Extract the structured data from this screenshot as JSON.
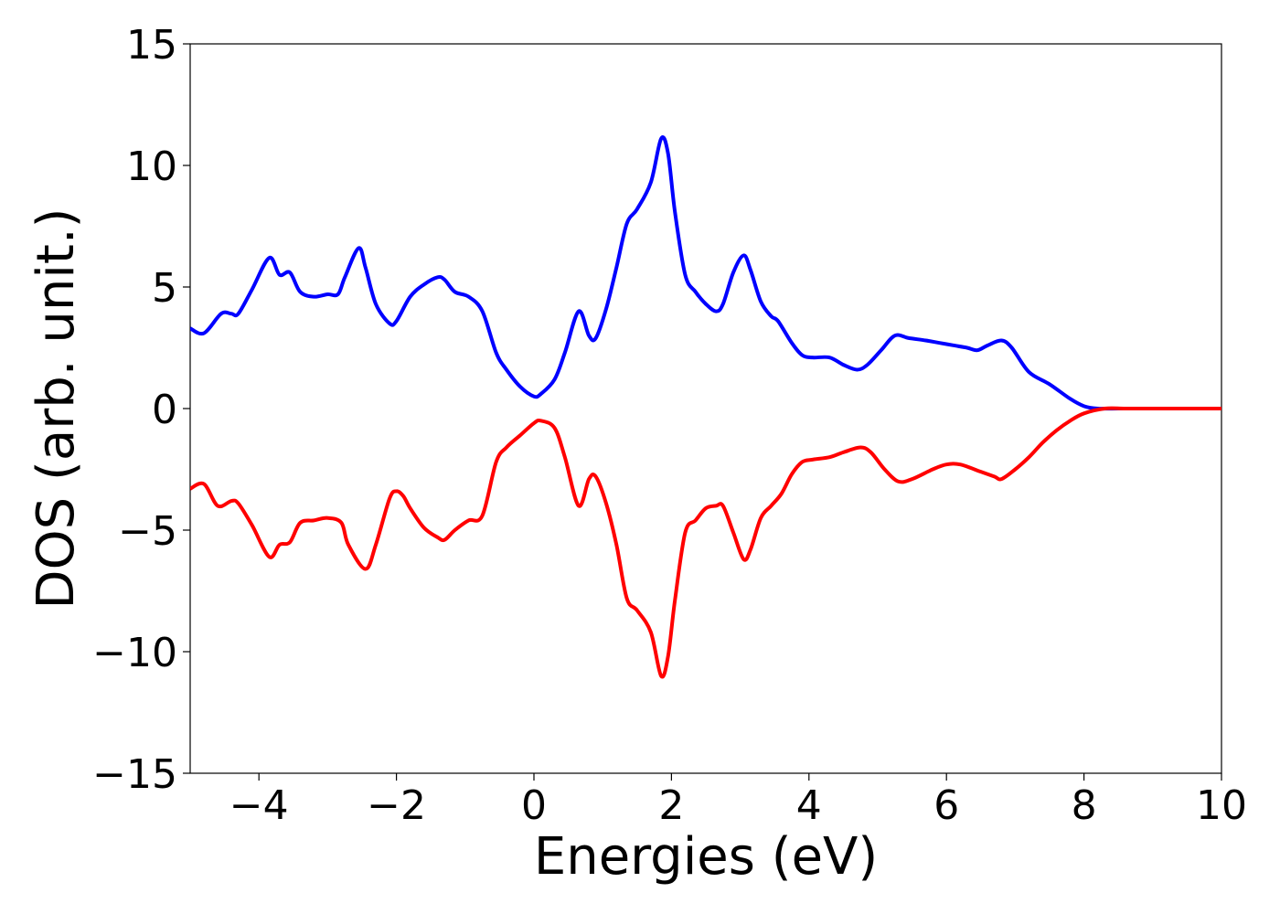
{
  "chart_data": {
    "type": "line",
    "title": "",
    "xlabel": "Energies (eV)",
    "ylabel": "DOS (arb. unit.)",
    "xlim": [
      -5,
      10
    ],
    "ylim": [
      -15,
      15
    ],
    "xticks": [
      -4,
      -2,
      0,
      2,
      4,
      6,
      8,
      10
    ],
    "yticks": [
      -15,
      -10,
      -5,
      0,
      5,
      10,
      15
    ],
    "xtick_labels": [
      "−4",
      "−2",
      "0",
      "2",
      "4",
      "6",
      "8",
      "10"
    ],
    "ytick_labels": [
      "−15",
      "−10",
      "−5",
      "0",
      "5",
      "10",
      "15"
    ],
    "grid": false,
    "legend": "none",
    "series": [
      {
        "color": "#0000ff",
        "x": [
          -5.0,
          -4.8,
          -4.55,
          -4.4,
          -4.3,
          -4.1,
          -3.85,
          -3.7,
          -3.55,
          -3.4,
          -3.2,
          -3.0,
          -2.85,
          -2.75,
          -2.55,
          -2.45,
          -2.3,
          -2.1,
          -2.0,
          -1.8,
          -1.6,
          -1.4,
          -1.3,
          -1.15,
          -0.95,
          -0.75,
          -0.55,
          -0.4,
          -0.2,
          0.0,
          0.1,
          0.3,
          0.45,
          0.65,
          0.8,
          0.9,
          1.05,
          1.2,
          1.35,
          1.5,
          1.7,
          1.85,
          1.95,
          2.05,
          2.2,
          2.35,
          2.5,
          2.65,
          2.75,
          2.9,
          3.05,
          3.15,
          3.3,
          3.45,
          3.55,
          3.75,
          3.9,
          4.05,
          4.3,
          4.5,
          4.7,
          4.85,
          5.05,
          5.25,
          5.45,
          5.7,
          5.9,
          6.1,
          6.3,
          6.45,
          6.6,
          6.8,
          6.95,
          7.2,
          7.5,
          7.8,
          8.0,
          8.2,
          8.5,
          9.0,
          9.5,
          10.0
        ],
        "y": [
          3.3,
          3.1,
          3.9,
          3.9,
          3.9,
          4.9,
          6.2,
          5.5,
          5.6,
          4.8,
          4.6,
          4.7,
          4.7,
          5.4,
          6.6,
          5.8,
          4.3,
          3.5,
          3.6,
          4.6,
          5.1,
          5.4,
          5.3,
          4.8,
          4.6,
          4.0,
          2.3,
          1.6,
          0.9,
          0.5,
          0.6,
          1.2,
          2.3,
          4.0,
          3.0,
          2.9,
          4.1,
          5.8,
          7.6,
          8.2,
          9.3,
          11.1,
          10.5,
          8.1,
          5.5,
          4.8,
          4.3,
          4.0,
          4.3,
          5.6,
          6.3,
          5.7,
          4.4,
          3.8,
          3.6,
          2.7,
          2.2,
          2.1,
          2.1,
          1.8,
          1.6,
          1.8,
          2.4,
          3.0,
          2.9,
          2.8,
          2.7,
          2.6,
          2.5,
          2.4,
          2.6,
          2.8,
          2.5,
          1.5,
          1.0,
          0.4,
          0.1,
          0.0,
          0.0,
          0.0,
          0.0,
          0.0
        ]
      },
      {
        "color": "#ff0000",
        "x": [
          -5.0,
          -4.8,
          -4.6,
          -4.4,
          -4.3,
          -4.1,
          -3.85,
          -3.7,
          -3.55,
          -3.4,
          -3.2,
          -3.0,
          -2.8,
          -2.7,
          -2.45,
          -2.3,
          -2.1,
          -2.0,
          -1.9,
          -1.8,
          -1.6,
          -1.4,
          -1.3,
          -1.15,
          -0.95,
          -0.75,
          -0.55,
          -0.4,
          -0.2,
          0.0,
          0.1,
          0.3,
          0.45,
          0.65,
          0.8,
          0.9,
          1.05,
          1.2,
          1.35,
          1.5,
          1.7,
          1.85,
          1.95,
          2.05,
          2.2,
          2.35,
          2.5,
          2.65,
          2.75,
          2.9,
          3.05,
          3.15,
          3.3,
          3.45,
          3.6,
          3.75,
          3.9,
          4.05,
          4.3,
          4.5,
          4.75,
          4.9,
          5.1,
          5.3,
          5.5,
          5.8,
          6.0,
          6.2,
          6.5,
          6.7,
          6.8,
          7.0,
          7.2,
          7.4,
          7.6,
          7.8,
          8.0,
          8.3,
          8.6,
          9.0,
          9.5,
          10.0
        ],
        "y": [
          -3.3,
          -3.1,
          -4.0,
          -3.8,
          -3.9,
          -4.8,
          -6.1,
          -5.6,
          -5.5,
          -4.7,
          -4.6,
          -4.5,
          -4.7,
          -5.6,
          -6.6,
          -5.6,
          -3.7,
          -3.4,
          -3.6,
          -4.1,
          -4.9,
          -5.3,
          -5.4,
          -5.0,
          -4.6,
          -4.4,
          -2.2,
          -1.6,
          -1.1,
          -0.6,
          -0.5,
          -0.8,
          -2.0,
          -4.0,
          -2.9,
          -2.8,
          -3.9,
          -5.6,
          -7.8,
          -8.3,
          -9.2,
          -11.0,
          -10.2,
          -7.9,
          -5.1,
          -4.6,
          -4.1,
          -4.0,
          -4.0,
          -5.1,
          -6.2,
          -5.8,
          -4.5,
          -4.0,
          -3.5,
          -2.7,
          -2.2,
          -2.1,
          -2.0,
          -1.8,
          -1.6,
          -1.8,
          -2.5,
          -3.0,
          -2.9,
          -2.5,
          -2.3,
          -2.3,
          -2.6,
          -2.8,
          -2.9,
          -2.5,
          -2.0,
          -1.4,
          -0.9,
          -0.5,
          -0.2,
          0.0,
          0.0,
          0.0,
          0.0,
          0.0
        ]
      }
    ]
  }
}
